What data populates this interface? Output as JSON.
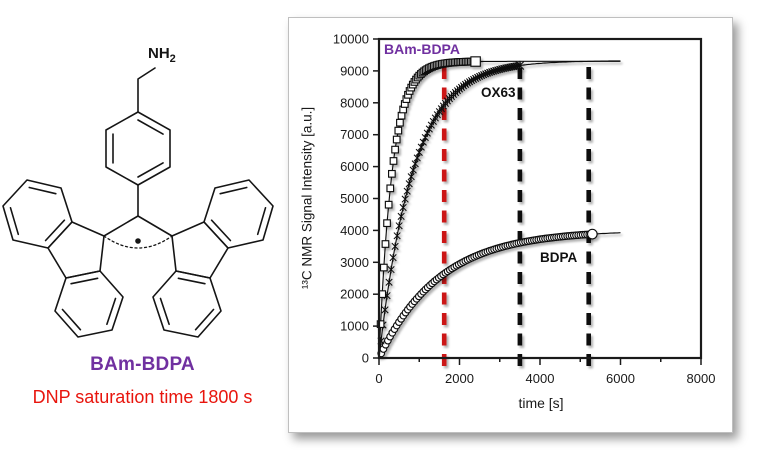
{
  "figure": {
    "background": "#ffffff"
  },
  "molecule_panel": {
    "amine_label_prefix": "NH",
    "amine_label_subscript": "2",
    "name_label": "BAm-BDPA",
    "name_color": "#7030A0",
    "caption": "DNP saturation time 1800 s",
    "caption_color": "#E8150D"
  },
  "chart_data": {
    "type": "line",
    "title": "",
    "xlabel": "time [s]",
    "ylabel": "¹³C NMR Signal Intensity [a.u.]",
    "xlim": [
      0,
      8000
    ],
    "ylim": [
      0,
      10000
    ],
    "x_major_ticks": [
      0,
      2000,
      4000,
      6000,
      8000
    ],
    "x_minor_ticks": [
      1000,
      3000,
      5000,
      7000
    ],
    "y_ticks": [
      0,
      1000,
      2000,
      3000,
      4000,
      5000,
      6000,
      7000,
      8000,
      9000,
      10000
    ],
    "grid": false,
    "legend_position": "inline-labels",
    "series": [
      {
        "name": "BAm-BDPA",
        "label_color": "#7030A0",
        "color": "#111111",
        "marker": "square",
        "model": {
          "type": "saturation_exponential",
          "amplitude": 9300,
          "tau_s": 330
        },
        "marker_step_s": 40,
        "marker_t_end_s": 2400,
        "fit_line_t_end_s": 6000,
        "points": [
          [
            0,
            0
          ],
          [
            250,
            4920
          ],
          [
            500,
            7270
          ],
          [
            750,
            8330
          ],
          [
            1000,
            8840
          ],
          [
            1250,
            9080
          ],
          [
            1500,
            9200
          ],
          [
            2000,
            9280
          ],
          [
            2400,
            9300
          ]
        ]
      },
      {
        "name": "OX63",
        "label_color": "#111111",
        "color": "#111111",
        "marker": "asterisk",
        "model": {
          "type": "saturation_exponential",
          "amplitude": 9320,
          "tau_s": 850
        },
        "marker_step_s": 50,
        "marker_t_end_s": 3500,
        "fit_line_t_end_s": 6000,
        "points": [
          [
            0,
            0
          ],
          [
            500,
            4140
          ],
          [
            1000,
            6450
          ],
          [
            1500,
            7720
          ],
          [
            2000,
            8440
          ],
          [
            2500,
            8830
          ],
          [
            3000,
            9050
          ],
          [
            3500,
            9170
          ]
        ]
      },
      {
        "name": "BDPA",
        "label_color": "#111111",
        "color": "#111111",
        "marker": "circle",
        "model": {
          "type": "saturation_exponential",
          "amplitude": 4000,
          "tau_s": 1500
        },
        "marker_step_s": 55,
        "marker_t_end_s": 5300,
        "fit_line_t_end_s": 6000,
        "points": [
          [
            0,
            0
          ],
          [
            500,
            1130
          ],
          [
            1000,
            1950
          ],
          [
            1500,
            2530
          ],
          [
            2000,
            2950
          ],
          [
            2500,
            3250
          ],
          [
            3000,
            3460
          ],
          [
            3500,
            3610
          ],
          [
            4000,
            3720
          ],
          [
            4500,
            3800
          ],
          [
            5000,
            3850
          ],
          [
            5300,
            3880
          ]
        ]
      }
    ],
    "vlines": [
      {
        "t_s": 1620,
        "v_top": 9280,
        "color": "#CC1212",
        "style": "dashed"
      },
      {
        "t_s": 3500,
        "v_top": 9100,
        "color": "#111111",
        "style": "dashed"
      },
      {
        "t_s": 5210,
        "v_top": 9260,
        "color": "#111111",
        "style": "dashed"
      }
    ]
  }
}
